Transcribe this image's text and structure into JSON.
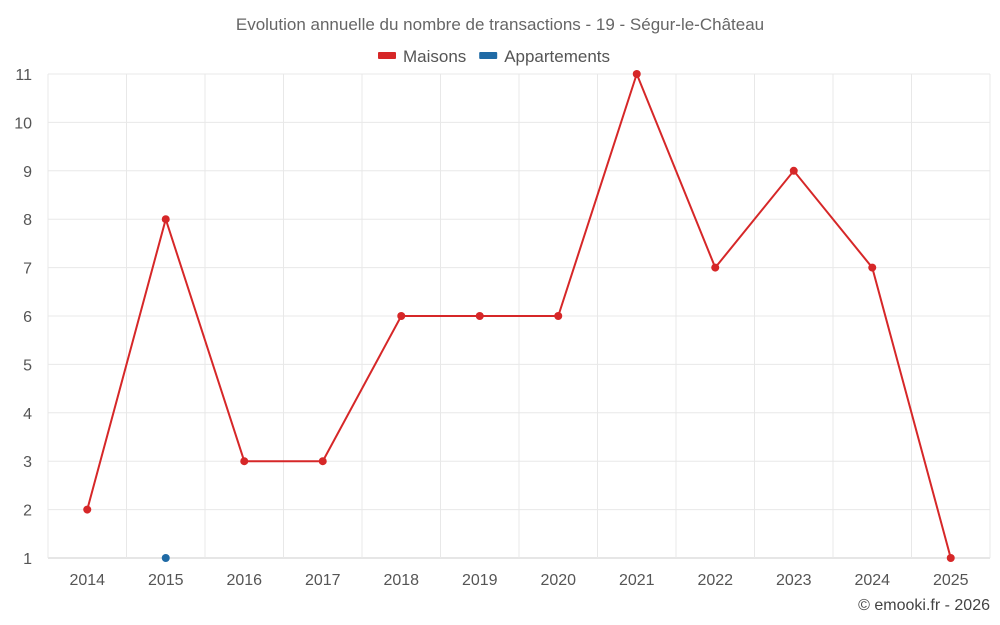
{
  "chart_data": {
    "type": "line",
    "title": "Evolution annuelle du nombre de transactions - 19 - Ségur-le-Château",
    "categories": [
      "2014",
      "2015",
      "2016",
      "2017",
      "2018",
      "2019",
      "2020",
      "2021",
      "2022",
      "2023",
      "2024",
      "2025"
    ],
    "series": [
      {
        "name": "Maisons",
        "color": "#d62728",
        "values": [
          2,
          8,
          3,
          3,
          6,
          6,
          6,
          11,
          7,
          9,
          7,
          1
        ]
      },
      {
        "name": "Appartements",
        "color": "#1f6aa5",
        "values": [
          null,
          1,
          null,
          null,
          null,
          null,
          null,
          null,
          null,
          null,
          null,
          null
        ]
      }
    ],
    "ylim": [
      1,
      11
    ],
    "yticks": [
      "1",
      "2",
      "3",
      "4",
      "5",
      "6",
      "7",
      "8",
      "9",
      "10",
      "11"
    ],
    "legend_position": "top-center",
    "grid": true,
    "credit": "© emooki.fr - 2026"
  }
}
